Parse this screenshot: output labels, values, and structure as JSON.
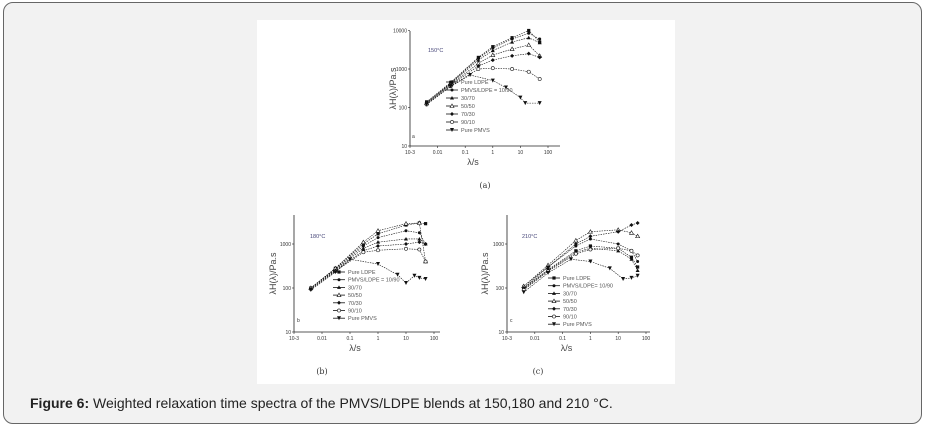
{
  "caption": {
    "label": "Figure 6:",
    "text": " Weighted relaxation time spectra of the PMVS/LDPE blends at 150,180 and 210 °C."
  },
  "chart_data": [
    {
      "panel": "a",
      "sublabel": "(a)",
      "temperature": "150°C",
      "type": "line",
      "xlabel": "λ/s",
      "ylabel": "λH(λ)/Pa.s",
      "xscale": "log",
      "yscale": "log",
      "xlim": [
        0.001,
        1000
      ],
      "ylim": [
        10,
        10000
      ],
      "xticks": [
        "10-3",
        "0.01",
        "0.1",
        "1",
        "10",
        "100"
      ],
      "yticks": [
        "10",
        "100",
        "1000",
        "10000"
      ],
      "legend_position": "center",
      "series": [
        {
          "name": "Pure LDPE",
          "marker": "square",
          "points": [
            [
              0.004,
              140
            ],
            [
              0.03,
              450
            ],
            [
              0.3,
              2000
            ],
            [
              1,
              3800
            ],
            [
              5,
              6500
            ],
            [
              20,
              10000
            ],
            [
              50,
              5000
            ]
          ]
        },
        {
          "name": "PMVS/LDPE = 10/90",
          "marker": "dot",
          "points": [
            [
              0.004,
              135
            ],
            [
              0.03,
              430
            ],
            [
              0.3,
              1900
            ],
            [
              1,
              3500
            ],
            [
              5,
              6000
            ],
            [
              20,
              8500
            ],
            [
              50,
              6000
            ]
          ]
        },
        {
          "name": "30/70",
          "marker": "triangle",
          "points": [
            [
              0.004,
              130
            ],
            [
              0.03,
              420
            ],
            [
              0.3,
              1700
            ],
            [
              1,
              3000
            ],
            [
              5,
              5000
            ],
            [
              20,
              6500
            ],
            [
              50,
              4800
            ]
          ]
        },
        {
          "name": "50/50",
          "marker": "triangle-open",
          "points": [
            [
              0.004,
              130
            ],
            [
              0.03,
              400
            ],
            [
              0.3,
              1400
            ],
            [
              1,
              2300
            ],
            [
              5,
              3300
            ],
            [
              20,
              4200
            ],
            [
              50,
              2200
            ]
          ]
        },
        {
          "name": "70/30",
          "marker": "diamond",
          "points": [
            [
              0.004,
              125
            ],
            [
              0.03,
              380
            ],
            [
              0.3,
              1200
            ],
            [
              1,
              1700
            ],
            [
              5,
              2200
            ],
            [
              20,
              2500
            ],
            [
              50,
              2000
            ]
          ]
        },
        {
          "name": "90/10",
          "marker": "circle-open",
          "points": [
            [
              0.004,
              120
            ],
            [
              0.03,
              360
            ],
            [
              0.3,
              1000
            ],
            [
              1,
              1050
            ],
            [
              5,
              1000
            ],
            [
              20,
              850
            ],
            [
              50,
              550
            ]
          ]
        },
        {
          "name": "Pure PMVS",
          "marker": "star",
          "points": [
            [
              0.004,
              120
            ],
            [
              0.03,
              350
            ],
            [
              0.15,
              700
            ],
            [
              1,
              500
            ],
            [
              3,
              330
            ],
            [
              10,
              180
            ],
            [
              15,
              130
            ],
            [
              50,
              130
            ]
          ]
        }
      ]
    },
    {
      "panel": "b",
      "sublabel": "(b)",
      "temperature": "180°C",
      "type": "line",
      "xlabel": "λ/s",
      "ylabel": "λH(λ)/Pa.s",
      "xscale": "log",
      "yscale": "log",
      "xlim": [
        0.001,
        1000
      ],
      "ylim": [
        10,
        5000
      ],
      "xticks": [
        "10-3",
        "0.01",
        "0.1",
        "1",
        "10",
        "100"
      ],
      "yticks": [
        "10",
        "100",
        "1000"
      ],
      "legend_position": "bottom-center",
      "series": [
        {
          "name": "Pure LDPE",
          "marker": "square",
          "points": [
            [
              0.004,
              100
            ],
            [
              0.03,
              280
            ],
            [
              0.3,
              1000
            ],
            [
              1,
              1700
            ],
            [
              10,
              2700
            ],
            [
              30,
              3000
            ],
            [
              50,
              2900
            ]
          ]
        },
        {
          "name": "PMVS/LDPE = 10/90",
          "marker": "dot",
          "points": [
            [
              0.004,
              100
            ],
            [
              0.03,
              270
            ],
            [
              0.3,
              900
            ],
            [
              1,
              1400
            ],
            [
              10,
              2000
            ],
            [
              30,
              1800
            ],
            [
              50,
              1000
            ]
          ]
        },
        {
          "name": "30/70",
          "marker": "triangle",
          "points": [
            [
              0.004,
              100
            ],
            [
              0.03,
              260
            ],
            [
              0.3,
              800
            ],
            [
              1,
              1100
            ],
            [
              10,
              1300
            ],
            [
              30,
              1300
            ],
            [
              50,
              1000
            ]
          ]
        },
        {
          "name": "50/50",
          "marker": "triangle-open",
          "points": [
            [
              0.004,
              100
            ],
            [
              0.03,
              280
            ],
            [
              0.3,
              1100
            ],
            [
              1,
              2000
            ],
            [
              10,
              2900
            ],
            [
              30,
              3000
            ],
            [
              50,
              400
            ]
          ]
        },
        {
          "name": "70/30",
          "marker": "diamond",
          "points": [
            [
              0.004,
              95
            ],
            [
              0.03,
              250
            ],
            [
              0.3,
              700
            ],
            [
              1,
              900
            ],
            [
              10,
              1000
            ],
            [
              30,
              1100
            ],
            [
              50,
              1000
            ]
          ]
        },
        {
          "name": "90/10",
          "marker": "circle-open",
          "points": [
            [
              0.004,
              95
            ],
            [
              0.03,
              240
            ],
            [
              0.3,
              650
            ],
            [
              1,
              720
            ],
            [
              10,
              780
            ],
            [
              30,
              750
            ],
            [
              50,
              400
            ]
          ]
        },
        {
          "name": "Pure PMVS",
          "marker": "star",
          "points": [
            [
              0.004,
              90
            ],
            [
              0.03,
              230
            ],
            [
              0.1,
              450
            ],
            [
              1,
              350
            ],
            [
              5,
              200
            ],
            [
              10,
              130
            ],
            [
              20,
              190
            ],
            [
              30,
              170
            ],
            [
              50,
              160
            ]
          ]
        }
      ]
    },
    {
      "panel": "c",
      "sublabel": "(c)",
      "temperature": "210°C",
      "type": "line",
      "xlabel": "λ/s",
      "ylabel": "λH(λ)/Pa.s",
      "xscale": "log",
      "yscale": "log",
      "xlim": [
        0.001,
        1000
      ],
      "ylim": [
        10,
        5000
      ],
      "xticks": [
        "10-3",
        "0.01",
        "0.1",
        "1",
        "10",
        "100"
      ],
      "yticks": [
        "10",
        "100",
        "1000"
      ],
      "legend_position": "bottom-center",
      "series": [
        {
          "name": "Pure LDPE",
          "marker": "square",
          "points": [
            [
              0.004,
              100
            ],
            [
              0.03,
              260
            ],
            [
              0.3,
              700
            ],
            [
              1,
              900
            ],
            [
              10,
              800
            ],
            [
              30,
              500
            ],
            [
              50,
              300
            ]
          ]
        },
        {
          "name": "PMVS/LDPE= 10/90",
          "marker": "dot",
          "points": [
            [
              0.004,
              110
            ],
            [
              0.03,
              300
            ],
            [
              0.3,
              900
            ],
            [
              1,
              1300
            ],
            [
              10,
              1000
            ],
            [
              30,
              700
            ],
            [
              50,
              400
            ]
          ]
        },
        {
          "name": "30/70",
          "marker": "triangle",
          "points": [
            [
              0.004,
              95
            ],
            [
              0.03,
              250
            ],
            [
              0.3,
              650
            ],
            [
              1,
              800
            ],
            [
              10,
              700
            ],
            [
              30,
              450
            ],
            [
              50,
              250
            ]
          ]
        },
        {
          "name": "50/50",
          "marker": "triangle-open",
          "points": [
            [
              0.004,
              110
            ],
            [
              0.03,
              330
            ],
            [
              0.3,
              1200
            ],
            [
              1,
              1900
            ],
            [
              10,
              2100
            ],
            [
              30,
              1800
            ],
            [
              50,
              1500
            ]
          ]
        },
        {
          "name": "70/30",
          "marker": "diamond",
          "points": [
            [
              0.004,
              100
            ],
            [
              0.03,
              300
            ],
            [
              0.3,
              1000
            ],
            [
              1,
              1500
            ],
            [
              10,
              1900
            ],
            [
              30,
              2700
            ],
            [
              50,
              3000
            ]
          ]
        },
        {
          "name": "90/10",
          "marker": "circle-open",
          "points": [
            [
              0.004,
              90
            ],
            [
              0.03,
              240
            ],
            [
              0.3,
              600
            ],
            [
              1,
              750
            ],
            [
              10,
              800
            ],
            [
              30,
              700
            ],
            [
              50,
              550
            ]
          ]
        },
        {
          "name": "Pure PMVS",
          "marker": "star",
          "points": [
            [
              0.004,
              80
            ],
            [
              0.03,
              220
            ],
            [
              0.2,
              450
            ],
            [
              1,
              400
            ],
            [
              5,
              280
            ],
            [
              15,
              160
            ],
            [
              30,
              170
            ],
            [
              50,
              190
            ]
          ]
        }
      ]
    }
  ]
}
